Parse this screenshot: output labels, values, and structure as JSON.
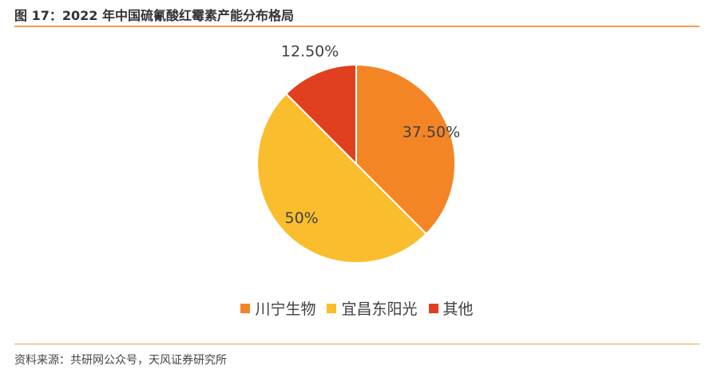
{
  "header": {
    "title": "图 17：2022 年中国硫氰酸红霉素产能分布格局"
  },
  "footer": {
    "source": "资料来源：共研网公众号，天风证券研究所"
  },
  "chart_data": {
    "type": "pie",
    "slices": [
      {
        "name": "川宁生物",
        "value": 37.5,
        "label": "37.50%",
        "color": "#f38524"
      },
      {
        "name": "宜昌东阳光",
        "value": 50,
        "label": "50%",
        "color": "#fabd2d"
      },
      {
        "name": "其他",
        "value": 12.5,
        "label": "12.50%",
        "color": "#e04020"
      }
    ],
    "legend": "bottom"
  }
}
